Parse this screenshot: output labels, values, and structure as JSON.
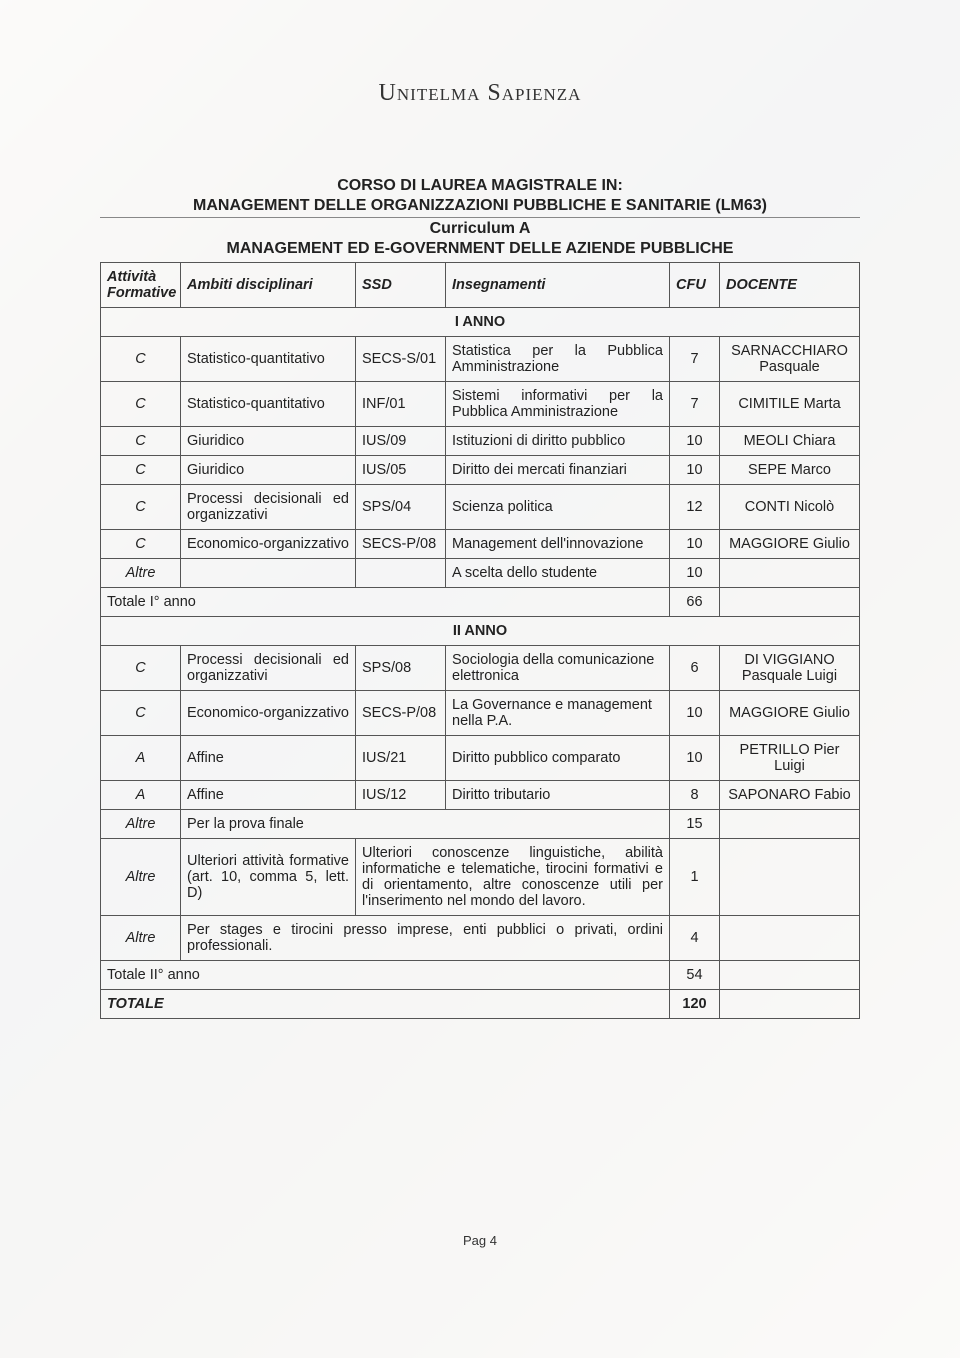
{
  "brand": "Unitelma Sapienza",
  "header": {
    "line1": "CORSO DI LAUREA MAGISTRALE IN:",
    "line2": "MANAGEMENT DELLE ORGANIZZAZIONI PUBBLICHE E SANITARIE (LM63)",
    "line3": "Curriculum A",
    "line4": "MANAGEMENT ED E-GOVERNMENT DELLE AZIENDE PUBBLICHE"
  },
  "columns": {
    "attivita": "Attività Formative",
    "ambiti": "Ambiti disciplinari",
    "ssd": "SSD",
    "insegnamenti": "Insegnamenti",
    "cfu": "CFU",
    "docente": "DOCENTE"
  },
  "year1_label": "I ANNO",
  "year1": [
    {
      "att": "C",
      "amb": "Statistico-quantitativo",
      "ssd": "SECS-S/01",
      "ins": "Statistica per la Pubblica Amministrazione",
      "cfu": "7",
      "doc": "SARNACCHIARO Pasquale"
    },
    {
      "att": "C",
      "amb": "Statistico-quantitativo",
      "ssd": "INF/01",
      "ins": "Sistemi informativi per la Pubblica Amministrazione",
      "cfu": "7",
      "doc": "CIMITILE Marta"
    },
    {
      "att": "C",
      "amb": "Giuridico",
      "ssd": "IUS/09",
      "ins": "Istituzioni di diritto pubblico",
      "cfu": "10",
      "doc": "MEOLI Chiara"
    },
    {
      "att": "C",
      "amb": "Giuridico",
      "ssd": "IUS/05",
      "ins": "Diritto dei mercati finanziari",
      "cfu": "10",
      "doc": "SEPE Marco"
    },
    {
      "att": "C",
      "amb": "Processi decisionali ed organizzativi",
      "ssd": "SPS/04",
      "ins": "Scienza politica",
      "cfu": "12",
      "doc": "CONTI Nicolò"
    },
    {
      "att": "C",
      "amb": "Economico-organizzativo",
      "ssd": "SECS-P/08",
      "ins": "Management dell'innovazione",
      "cfu": "10",
      "doc": "MAGGIORE Giulio"
    },
    {
      "att": "Altre",
      "amb": "",
      "ssd": "",
      "ins": "A scelta dello studente",
      "cfu": "10",
      "doc": ""
    }
  ],
  "total1": {
    "label": "Totale I° anno",
    "cfu": "66"
  },
  "year2_label": "II ANNO",
  "year2": [
    {
      "att": "C",
      "amb": "Processi decisionali ed organizzativi",
      "ssd": "SPS/08",
      "ins": "Sociologia della comunicazione elettronica",
      "cfu": "6",
      "doc": "DI VIGGIANO Pasquale Luigi"
    },
    {
      "att": "C",
      "amb": "Economico-organizzativo",
      "ssd": "SECS-P/08",
      "ins": "La Governance e management nella P.A.",
      "cfu": "10",
      "doc": "MAGGIORE Giulio"
    },
    {
      "att": "A",
      "amb": "Affine",
      "ssd": "IUS/21",
      "ins": "Diritto pubblico comparato",
      "cfu": "10",
      "doc": "PETRILLO Pier Luigi"
    },
    {
      "att": "A",
      "amb": "Affine",
      "ssd": "IUS/12",
      "ins": "Diritto tributario",
      "cfu": "8",
      "doc": "SAPONARO Fabio"
    }
  ],
  "year2_extra": {
    "finale": {
      "att": "Altre",
      "amb": "Per la prova finale",
      "cfu": "15"
    },
    "ult": {
      "att": "Altre",
      "amb": "Ulteriori attività formative (art. 10, comma 5, lett. D)",
      "desc": "Ulteriori conoscenze linguistiche, abilità informatiche e telematiche, tirocini formativi e di orientamento, altre conoscenze utili per l'inserimento nel mondo del lavoro.",
      "cfu": "1"
    },
    "stages": {
      "att": "Altre",
      "desc": "Per stages e tirocini presso imprese, enti pubblici o privati, ordini professionali.",
      "cfu": "4"
    }
  },
  "total2": {
    "label": "Totale II° anno",
    "cfu": "54"
  },
  "grand": {
    "label": "TOTALE",
    "cfu": "120"
  },
  "footer": "Pag 4",
  "colors": {
    "border": "#555555",
    "text": "#222222"
  }
}
